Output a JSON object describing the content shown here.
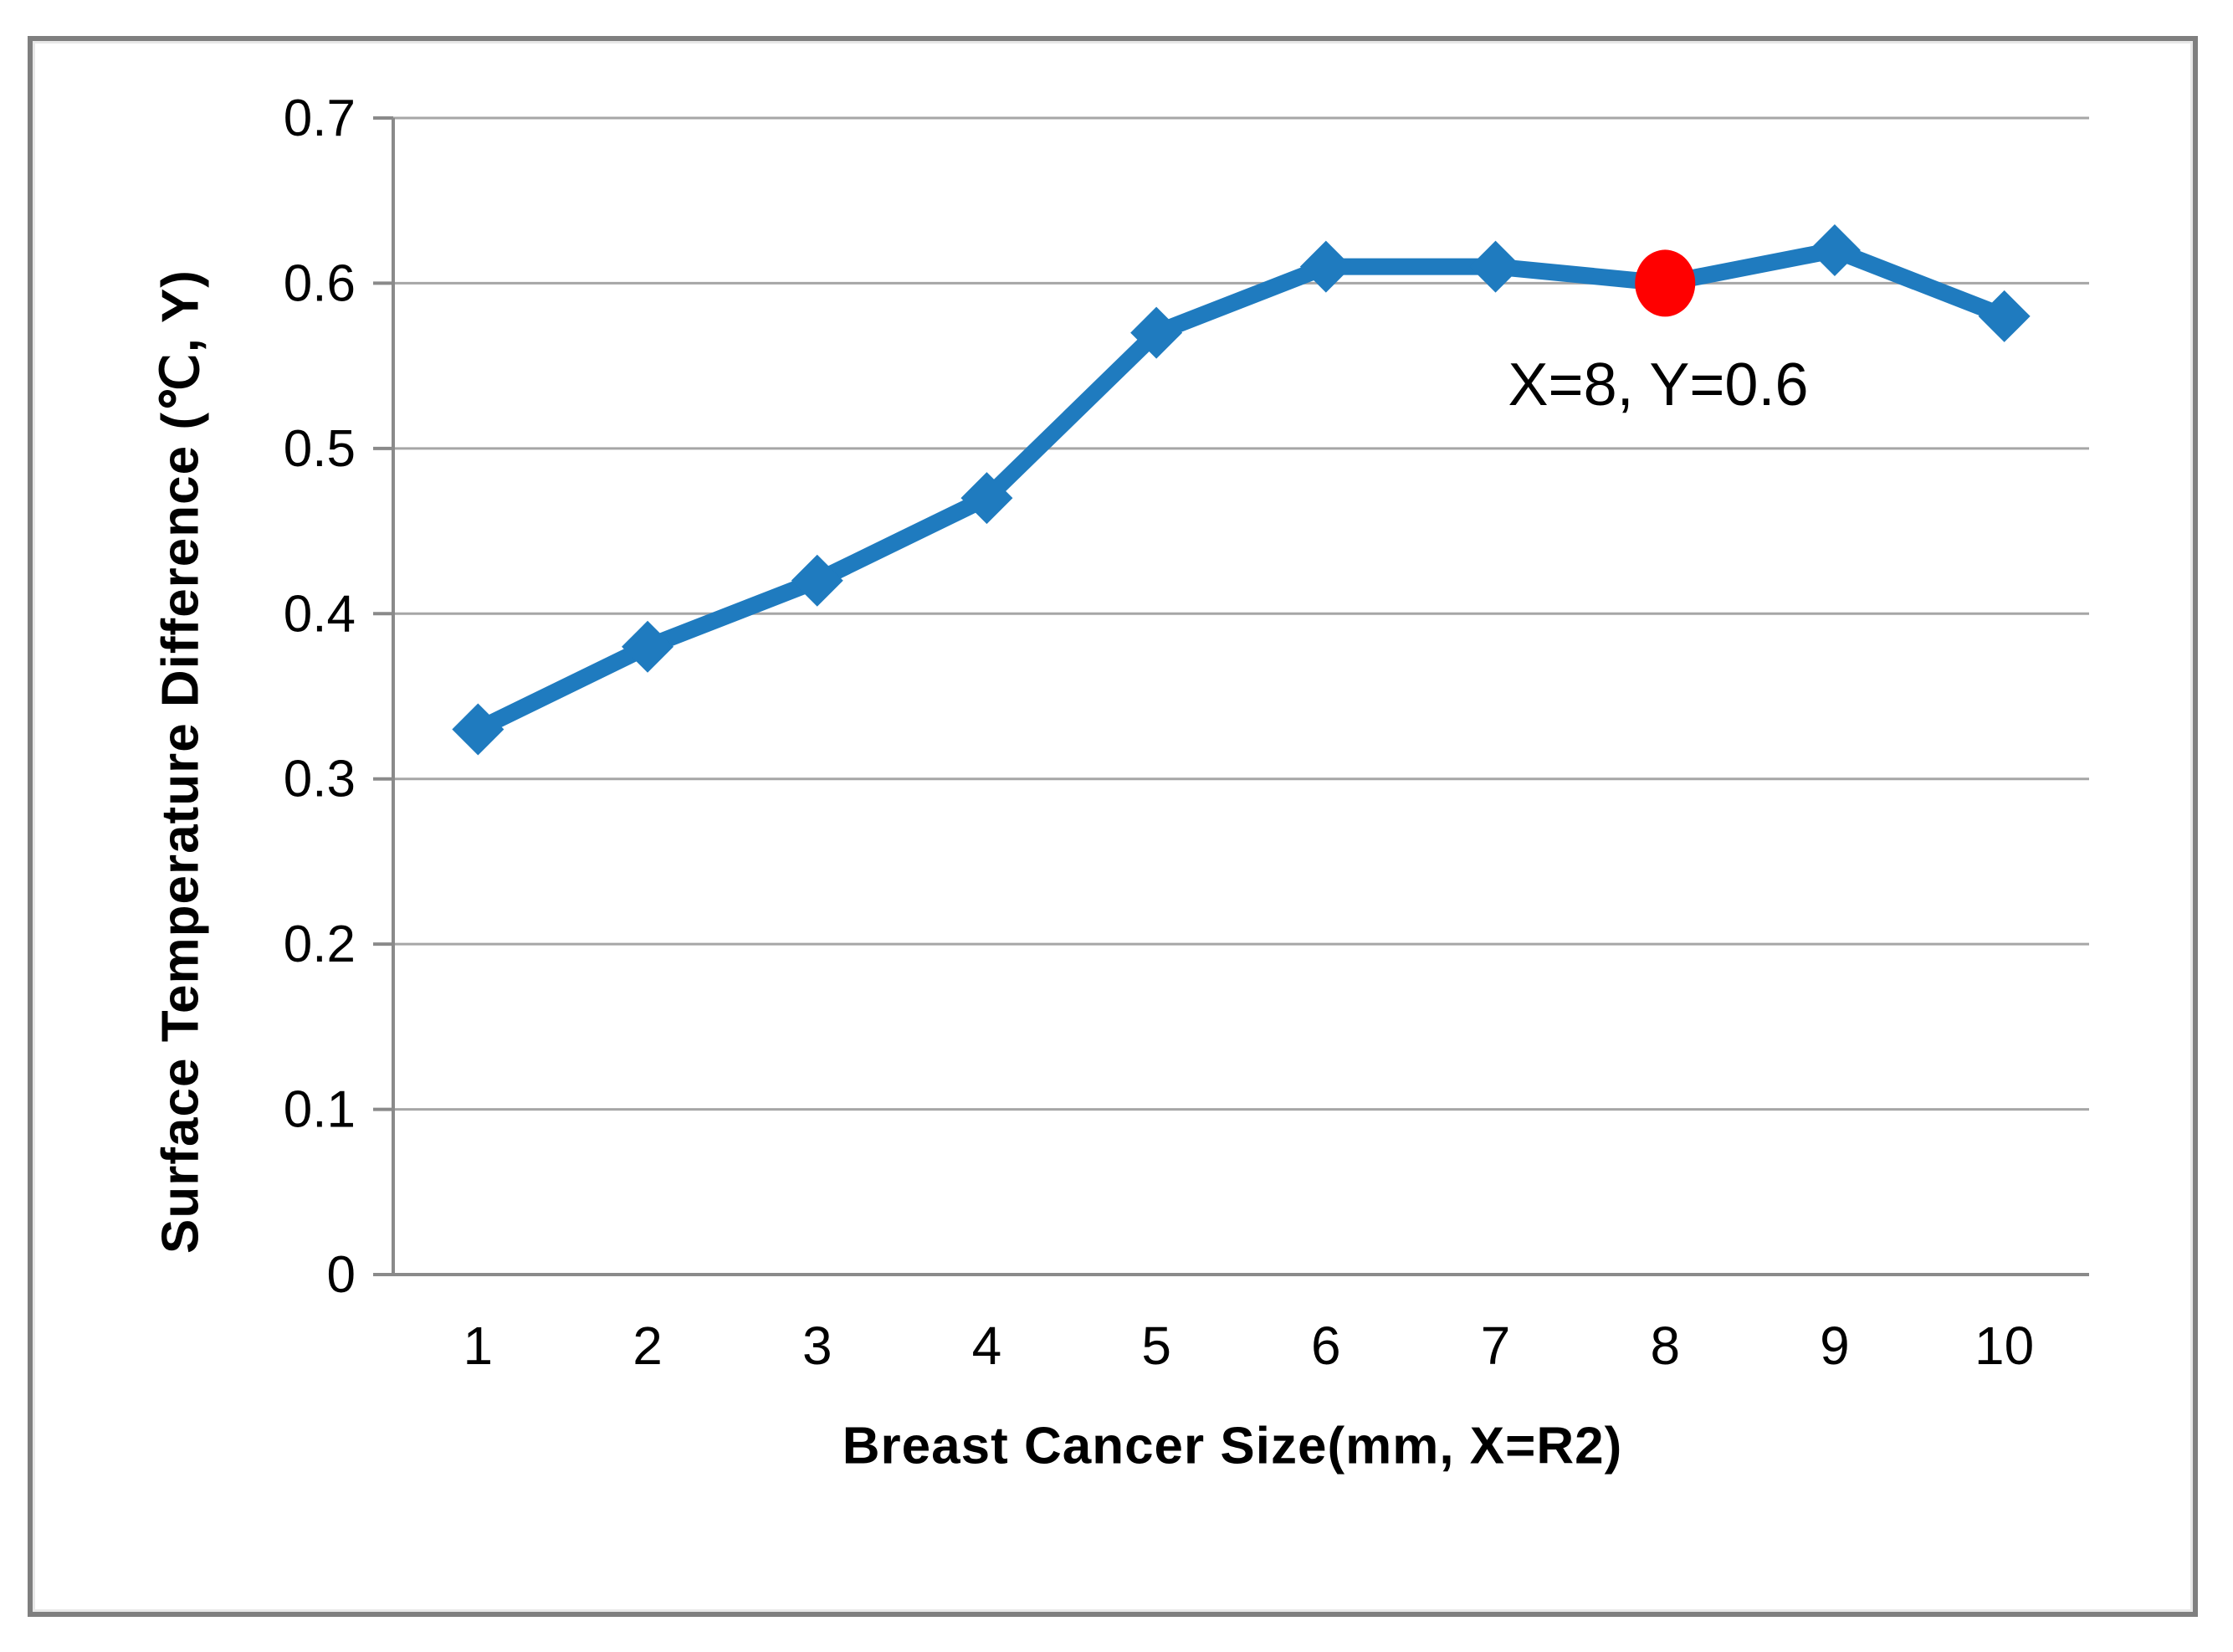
{
  "chart_data": {
    "type": "line",
    "title": "",
    "xlabel": "Breast Cancer Size(mm, X=R2)",
    "ylabel": "Surface Temperature Difference (℃, Y)",
    "categories": [
      1,
      2,
      3,
      4,
      5,
      6,
      7,
      8,
      9,
      10
    ],
    "x_tick_labels": [
      "1",
      "2",
      "3",
      "4",
      "5",
      "6",
      "7",
      "8",
      "9",
      "10"
    ],
    "series": [
      {
        "name": "Surface temperature difference",
        "values": [
          0.33,
          0.38,
          0.42,
          0.47,
          0.57,
          0.61,
          0.61,
          0.6,
          0.62,
          0.58
        ]
      }
    ],
    "ylim": [
      0,
      0.7
    ],
    "y_ticks": {
      "values": [
        0,
        0.1,
        0.2,
        0.3,
        0.4,
        0.5,
        0.6,
        0.7
      ],
      "labels": [
        "0",
        "0.1",
        "0.2",
        "0.3",
        "0.4",
        "0.5",
        "0.6",
        "0.7"
      ]
    },
    "grid": true,
    "legend": "none",
    "marker": "diamond",
    "line_color": "#1f7bbf",
    "marker_color": "#1f7bbf",
    "gridline_color": "#a6a6a6",
    "axis_color": "#8a8a8a",
    "text_color": "#000000",
    "frame_border_color": "#7f7f7f",
    "highlight_point": {
      "x": 8,
      "y": 0.6,
      "color": "#ff0000"
    },
    "annotation": {
      "text": "X=8, Y=0.6"
    }
  }
}
